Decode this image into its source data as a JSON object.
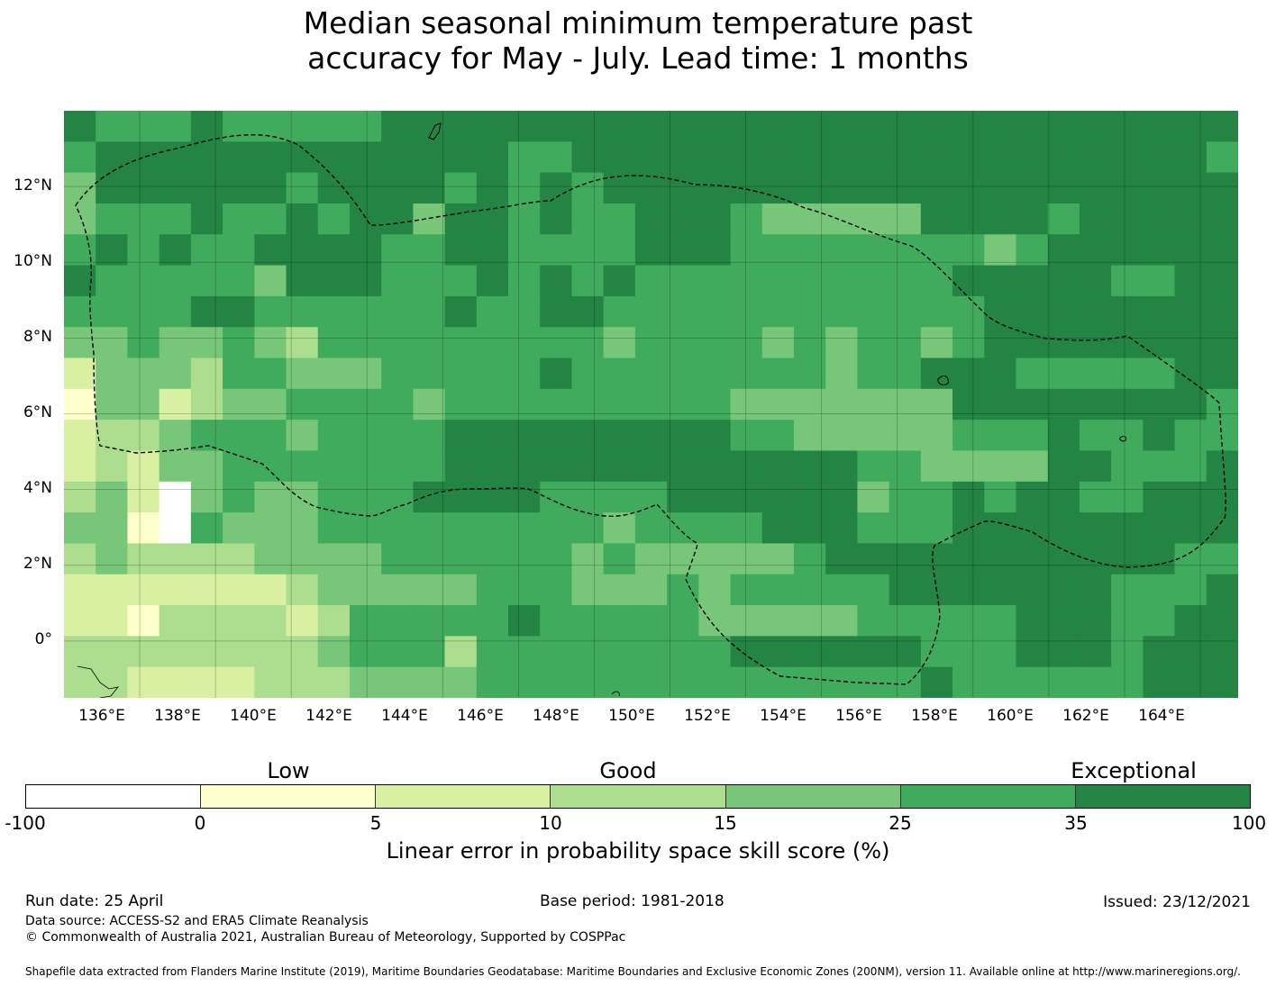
{
  "title_line1": "Median seasonal minimum temperature past",
  "title_line2": "accuracy for May - July. Lead time: 1 months",
  "map": {
    "lat_labels": [
      "12°N",
      "10°N",
      "8°N",
      "6°N",
      "4°N",
      "2°N",
      "0°"
    ],
    "lon_labels": [
      "136°E",
      "138°E",
      "140°E",
      "142°E",
      "144°E",
      "146°E",
      "148°E",
      "150°E",
      "152°E",
      "154°E",
      "156°E",
      "158°E",
      "160°E",
      "162°E",
      "164°E"
    ],
    "extent": {
      "lon_min": 134.0,
      "lon_max": 165.0,
      "lat_min": -1.5,
      "lat_max": 14.0
    },
    "grid_res_deg": 0.83,
    "grid_cols": 37,
    "grid_rows": 19,
    "skill_class_grid": [
      "6555655555666666666666666666666666666",
      "5666666666666655666666666666666666665",
      "4666666566665656566666666666666666666",
      "4555655656646656556665444446666566666",
      "5656556666556655556665555555545666666",
      "6555554666555656565555555555666665566",
      "5555665555556556655555555555566666666",
      "4454454355555555545555454554566666666",
      "2444355444555556555555554556665555566",
      "1442344555545555555554444444666666665",
      "2334555455556666666665544444555655655",
      "2324455555556666666666666554444665556",
      "3420454455566665555666666455656655666",
      "4410544455555555545555666555666666666",
      "3433334444555555454444456666666666655",
      "2222222344444555444545555566666665556",
      "2213333235555565555544444555556665566",
      "3333333345553555555556666665556665666",
      "3322223334444555555555555556555555666"
    ],
    "colors": [
      "#ffffff",
      "#ffffcc",
      "#d9f0a3",
      "#addd8e",
      "#78c679",
      "#41ab5d",
      "#238443"
    ]
  },
  "colorbar": {
    "categories": [
      "Low",
      "Good",
      "Exceptional"
    ],
    "ticks": [
      "-100",
      "0",
      "5",
      "10",
      "15",
      "25",
      "35",
      "100"
    ],
    "segment_colors": [
      "#ffffff",
      "#ffffcc",
      "#d9f0a3",
      "#addd8e",
      "#78c679",
      "#41ab5d",
      "#238443"
    ],
    "label": "Linear error in probability space skill score (%)"
  },
  "footer": {
    "run_date": "Run date: 25 April",
    "base_period": "Base period: 1981-2018",
    "issued": "Issued: 23/12/2021",
    "data_source": "Data source: ACCESS-S2 and ERA5 Climate Reanalysis",
    "copyright": "© Commonwealth of Australia 2021, Australian Bureau of Meteorology, Supported by COSPPac",
    "shapefile": "Shapefile data extracted from Flanders Marine Institute (2019), Maritime Boundaries Geodatabase: Maritime Boundaries and Exclusive Economic Zones (200NM), version 11. Available online at http://www.marineregions.org/."
  }
}
